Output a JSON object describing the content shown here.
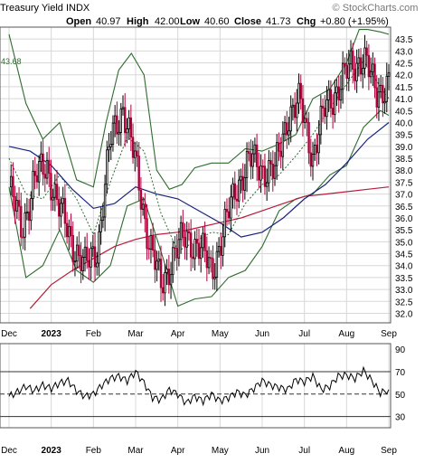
{
  "header": {
    "title": "Treasury Yield INDX",
    "open_label": "Open",
    "open_value": "40.97",
    "high_label": "High",
    "high_value": "42.00",
    "low_label": "Low",
    "low_value": "40.60",
    "close_label": "Close",
    "close_value": "41.73",
    "chg_label": "Chg",
    "chg_value": "+0.80 (+1.95%)",
    "watermark": "© StockCharts.com"
  },
  "colors": {
    "up_candle": "#000000",
    "down_candle": "#b0003a",
    "bollinger": "#2e6b2e",
    "ma_short": "#1a237e",
    "ma_long": "#b71c3c",
    "grid": "#d8d8d8"
  },
  "chart_data": [
    {
      "type": "line",
      "subtype": "candlestick",
      "title": "Treasury Yield INDX",
      "y_ticks": [
        32.0,
        32.5,
        33.0,
        33.5,
        34.0,
        34.5,
        35.0,
        35.5,
        36.0,
        36.5,
        37.0,
        37.5,
        38.0,
        38.5,
        39.0,
        39.5,
        40.0,
        40.5,
        41.0,
        41.5,
        42.0,
        42.5,
        43.0,
        43.5
      ],
      "ylim": [
        31.6,
        44.0
      ],
      "x_tick_labels": [
        "Dec",
        "2023",
        "Feb",
        "Mar",
        "Apr",
        "May",
        "Jun",
        "Jul",
        "Aug",
        "Sep"
      ],
      "x_ticks_month_index": [
        0,
        1,
        2,
        3,
        4,
        5,
        6,
        7,
        8,
        9
      ],
      "annotation": "43.68",
      "grid": true,
      "series": [
        {
          "key": "close",
          "x": [
            0.0,
            0.3,
            0.6,
            0.9,
            1.2,
            1.5,
            1.8,
            2.1,
            2.4,
            2.7,
            3.0,
            3.3,
            3.6,
            3.9,
            4.2,
            4.5,
            4.8,
            5.1,
            5.4,
            5.7,
            6.0,
            6.3,
            6.6,
            6.9,
            7.2,
            7.5,
            7.8,
            8.1,
            8.4,
            8.7,
            9.0
          ],
          "values": [
            37.3,
            35.5,
            37.6,
            38.2,
            36.3,
            35.0,
            33.9,
            34.8,
            39.2,
            40.7,
            38.2,
            35.2,
            33.1,
            34.5,
            35.2,
            34.8,
            33.8,
            35.5,
            37.4,
            38.4,
            38.1,
            37.9,
            40.3,
            40.8,
            38.6,
            40.6,
            41.5,
            42.3,
            42.8,
            41.2,
            41.73
          ]
        },
        {
          "name": "",
          "key": "ma_short",
          "x": [
            0.0,
            0.5,
            1.0,
            1.5,
            2.0,
            2.5,
            3.0,
            3.5,
            4.0,
            4.5,
            5.0,
            5.5,
            6.0,
            6.5,
            7.0,
            7.5,
            8.0,
            8.5,
            9.0
          ],
          "values": [
            39.0,
            38.8,
            38.2,
            37.2,
            36.4,
            36.6,
            37.3,
            37.0,
            36.8,
            36.3,
            35.8,
            35.2,
            35.4,
            36.0,
            36.8,
            37.4,
            38.3,
            39.3,
            40.0
          ]
        },
        {
          "name": "",
          "key": "ma_long",
          "x": [
            0.5,
            1.0,
            1.5,
            2.0,
            2.5,
            3.0,
            3.5,
            4.0,
            4.5,
            5.0,
            5.5,
            6.0,
            6.5,
            7.0,
            7.5,
            8.0,
            8.5,
            9.0
          ],
          "values": [
            32.2,
            33.2,
            33.8,
            34.3,
            34.8,
            35.1,
            35.3,
            35.4,
            35.6,
            35.8,
            36.0,
            36.3,
            36.6,
            36.9,
            37.0,
            37.1,
            37.2,
            37.3
          ]
        },
        {
          "name": "",
          "key": "bb_upper",
          "x": [
            0.0,
            0.4,
            0.8,
            1.2,
            1.6,
            2.0,
            2.3,
            2.6,
            2.9,
            3.2,
            3.5,
            3.8,
            4.1,
            4.4,
            4.8,
            5.2,
            5.6,
            6.0,
            6.4,
            6.8,
            7.2,
            7.6,
            8.0,
            8.3,
            8.5,
            8.8,
            9.0
          ],
          "values": [
            43.7,
            40.8,
            39.3,
            40.0,
            37.6,
            37.3,
            40.0,
            42.2,
            42.9,
            42.0,
            38.0,
            37.2,
            37.4,
            38.1,
            38.3,
            38.3,
            38.9,
            38.8,
            39.1,
            39.5,
            41.0,
            41.4,
            42.5,
            43.9,
            43.9,
            43.8,
            43.7
          ]
        },
        {
          "name": "",
          "key": "bb_mid",
          "x": [
            0.0,
            0.4,
            0.8,
            1.2,
            1.6,
            2.0,
            2.4,
            2.8,
            3.2,
            3.6,
            4.0,
            4.4,
            4.8,
            5.2,
            5.6,
            6.0,
            6.4,
            6.8,
            7.2,
            7.6,
            8.0,
            8.4,
            8.8,
            9.0
          ],
          "values": [
            38.5,
            37.0,
            36.8,
            37.8,
            36.8,
            35.3,
            37.5,
            39.4,
            38.8,
            36.2,
            34.6,
            35.0,
            35.4,
            35.3,
            36.6,
            37.4,
            37.8,
            38.6,
            39.5,
            40.6,
            41.6,
            42.6,
            41.5,
            41.0
          ]
        },
        {
          "name": "",
          "key": "bb_lower",
          "x": [
            0.0,
            0.4,
            0.8,
            1.2,
            1.6,
            2.0,
            2.4,
            2.8,
            3.2,
            3.6,
            4.0,
            4.4,
            4.8,
            5.2,
            5.6,
            6.0,
            6.4,
            6.8,
            7.2,
            7.6,
            8.0,
            8.4,
            8.8,
            9.0
          ],
          "values": [
            37.3,
            33.5,
            34.0,
            35.5,
            33.8,
            33.3,
            34.0,
            36.5,
            36.8,
            34.6,
            32.3,
            32.6,
            32.7,
            33.5,
            33.8,
            34.8,
            36.3,
            36.8,
            37.0,
            37.8,
            38.2,
            39.8,
            40.5,
            40.3
          ]
        }
      ]
    },
    {
      "type": "line",
      "subtype": "RSI",
      "y_ticks": [
        30,
        50,
        70,
        90
      ],
      "ylim": [
        20,
        95
      ],
      "reference_lines": [
        30,
        50,
        70
      ],
      "x_tick_labels": [
        "Dec",
        "2023",
        "Feb",
        "Mar",
        "Apr",
        "May",
        "Jun",
        "Jul",
        "Aug",
        "Sep"
      ],
      "x_ticks_month_index": [
        0,
        1,
        2,
        3,
        4,
        5,
        6,
        7,
        8,
        9
      ],
      "series": [
        {
          "name": "",
          "key": "rsi",
          "x": [
            0.0,
            0.2,
            0.4,
            0.6,
            0.8,
            1.0,
            1.2,
            1.4,
            1.6,
            1.8,
            2.0,
            2.2,
            2.4,
            2.6,
            2.8,
            3.0,
            3.2,
            3.4,
            3.6,
            3.8,
            4.0,
            4.2,
            4.4,
            4.6,
            4.8,
            5.0,
            5.2,
            5.4,
            5.6,
            5.8,
            6.0,
            6.2,
            6.4,
            6.6,
            6.8,
            7.0,
            7.2,
            7.4,
            7.6,
            7.8,
            8.0,
            8.2,
            8.4,
            8.6,
            8.8,
            9.0
          ],
          "values": [
            48,
            52,
            57,
            53,
            58,
            55,
            60,
            62,
            53,
            48,
            50,
            58,
            64,
            66,
            62,
            70,
            60,
            47,
            45,
            54,
            50,
            42,
            48,
            44,
            50,
            44,
            47,
            52,
            49,
            55,
            62,
            58,
            56,
            54,
            63,
            61,
            66,
            54,
            57,
            66,
            67,
            64,
            71,
            62,
            51,
            54
          ]
        }
      ]
    }
  ]
}
